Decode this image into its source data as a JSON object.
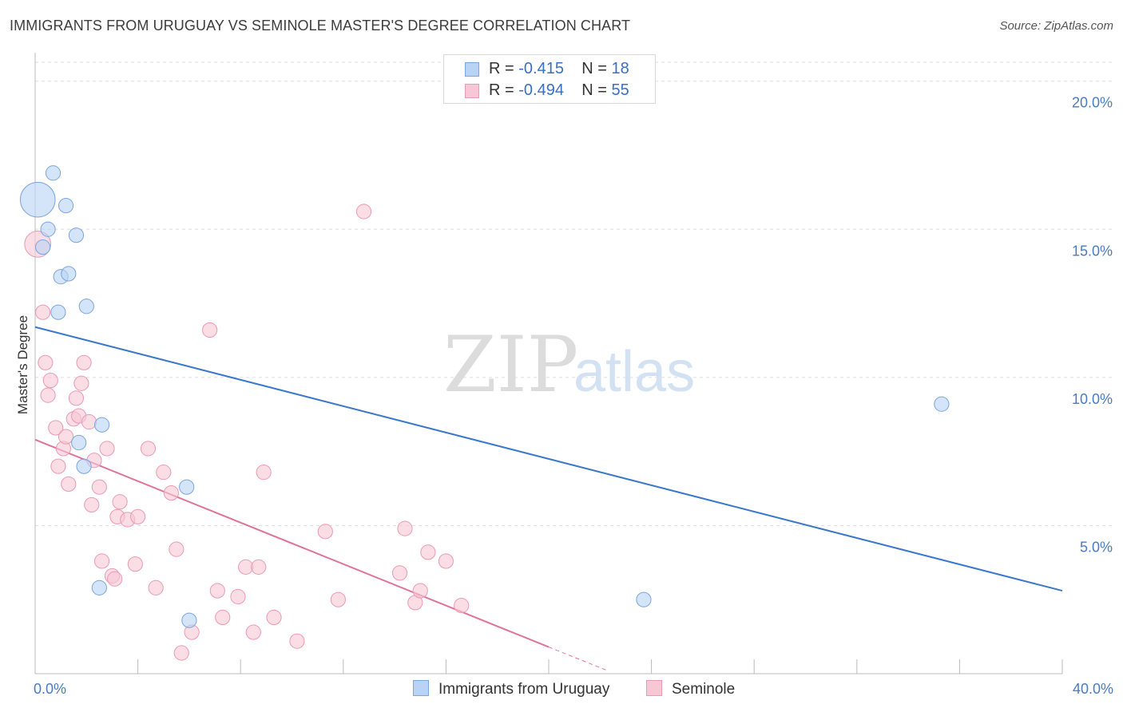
{
  "title": "IMMIGRANTS FROM URUGUAY VS SEMINOLE MASTER'S DEGREE CORRELATION CHART",
  "source": "Source: ZipAtlas.com",
  "watermark": {
    "zip": "ZIP",
    "atlas": "atlas"
  },
  "legend": {
    "r_label": "R =",
    "n_label": "N =",
    "rows": [
      {
        "r": "-0.415",
        "n": "18"
      },
      {
        "r": "-0.494",
        "n": "55"
      }
    ]
  },
  "colors": {
    "uruguay_fill": "#b8d3f5",
    "uruguay_stroke": "#7aa5de",
    "uruguay_line": "#3a78cc",
    "seminole_fill": "#f9c6d6",
    "seminole_stroke": "#ea9ab4",
    "seminole_line": "#e0739a",
    "tick_label": "#4a7cc0",
    "grid": "#dddddd"
  },
  "chart_data": {
    "type": "scatter",
    "title": "IMMIGRANTS FROM URUGUAY VS SEMINOLE MASTER'S DEGREE CORRELATION CHART",
    "xlabel": "",
    "ylabel": "Master's Degree",
    "xlim": [
      0,
      40
    ],
    "ylim": [
      0,
      20.8
    ],
    "x_tick_labels": [
      "0.0%",
      "40.0%"
    ],
    "y_ticks": [
      {
        "value": 5,
        "label": "5.0%"
      },
      {
        "value": 10,
        "label": "10.0%"
      },
      {
        "value": 15,
        "label": "15.0%"
      },
      {
        "value": 20,
        "label": "20.0%"
      }
    ],
    "grid": true,
    "legend_position": "bottom",
    "series": [
      {
        "name": "Immigrants from Uruguay",
        "points": [
          [
            0.1,
            16.0,
            24
          ],
          [
            0.7,
            16.9,
            10
          ],
          [
            1.2,
            15.8,
            10
          ],
          [
            0.5,
            15.0,
            10
          ],
          [
            1.6,
            14.8,
            10
          ],
          [
            0.3,
            14.4,
            10
          ],
          [
            1.0,
            13.4,
            10
          ],
          [
            1.3,
            13.5,
            10
          ],
          [
            2.0,
            12.4,
            10
          ],
          [
            0.9,
            12.2,
            10
          ],
          [
            2.6,
            8.4,
            10
          ],
          [
            1.7,
            7.8,
            10
          ],
          [
            1.9,
            7.0,
            10
          ],
          [
            5.9,
            6.3,
            10
          ],
          [
            2.5,
            2.9,
            10
          ],
          [
            6.0,
            1.8,
            10
          ],
          [
            23.7,
            2.5,
            10
          ],
          [
            35.3,
            9.1,
            10
          ]
        ],
        "trendline": {
          "x": [
            0,
            40
          ],
          "y": [
            11.7,
            2.8
          ]
        }
      },
      {
        "name": "Seminole",
        "points": [
          [
            0.1,
            14.5,
            18
          ],
          [
            0.3,
            12.2,
            10
          ],
          [
            0.4,
            10.5,
            10
          ],
          [
            0.6,
            9.9,
            10
          ],
          [
            0.5,
            9.4,
            10
          ],
          [
            0.8,
            8.3,
            10
          ],
          [
            0.9,
            7.0,
            10
          ],
          [
            1.1,
            7.6,
            10
          ],
          [
            1.2,
            8.0,
            10
          ],
          [
            1.3,
            6.4,
            10
          ],
          [
            1.5,
            8.6,
            10
          ],
          [
            1.6,
            9.3,
            10
          ],
          [
            1.7,
            8.7,
            10
          ],
          [
            1.8,
            9.8,
            10
          ],
          [
            1.9,
            10.5,
            10
          ],
          [
            2.1,
            8.5,
            10
          ],
          [
            2.3,
            7.2,
            10
          ],
          [
            2.2,
            5.7,
            10
          ],
          [
            2.5,
            6.3,
            10
          ],
          [
            2.8,
            7.6,
            10
          ],
          [
            2.6,
            3.8,
            10
          ],
          [
            3.0,
            3.3,
            10
          ],
          [
            3.1,
            3.2,
            10
          ],
          [
            3.2,
            5.3,
            10
          ],
          [
            3.3,
            5.8,
            10
          ],
          [
            3.6,
            5.2,
            10
          ],
          [
            4.0,
            5.3,
            10
          ],
          [
            3.9,
            3.7,
            10
          ],
          [
            4.4,
            7.6,
            10
          ],
          [
            4.7,
            2.9,
            10
          ],
          [
            5.0,
            6.8,
            10
          ],
          [
            5.3,
            6.1,
            10
          ],
          [
            5.5,
            4.2,
            10
          ],
          [
            5.7,
            0.7,
            10
          ],
          [
            6.1,
            1.4,
            10
          ],
          [
            6.8,
            11.6,
            10
          ],
          [
            7.1,
            2.8,
            10
          ],
          [
            7.3,
            1.9,
            10
          ],
          [
            7.9,
            2.6,
            10
          ],
          [
            8.2,
            3.6,
            10
          ],
          [
            8.5,
            1.4,
            10
          ],
          [
            8.7,
            3.6,
            10
          ],
          [
            8.9,
            6.8,
            10
          ],
          [
            9.3,
            1.9,
            10
          ],
          [
            10.2,
            1.1,
            10
          ],
          [
            11.3,
            4.8,
            10
          ],
          [
            11.8,
            2.5,
            10
          ],
          [
            12.8,
            15.6,
            10
          ],
          [
            14.2,
            3.4,
            10
          ],
          [
            14.4,
            4.9,
            10
          ],
          [
            14.8,
            2.4,
            10
          ],
          [
            15.0,
            2.8,
            10
          ],
          [
            15.3,
            4.1,
            10
          ],
          [
            16.0,
            3.8,
            10
          ],
          [
            16.6,
            2.3,
            10
          ]
        ],
        "trendline": {
          "x": [
            0,
            20
          ],
          "y": [
            7.9,
            0.9
          ]
        },
        "trendline_dashed": {
          "x": [
            20,
            22.3
          ],
          "y": [
            0.9,
            0.1
          ]
        }
      }
    ]
  }
}
